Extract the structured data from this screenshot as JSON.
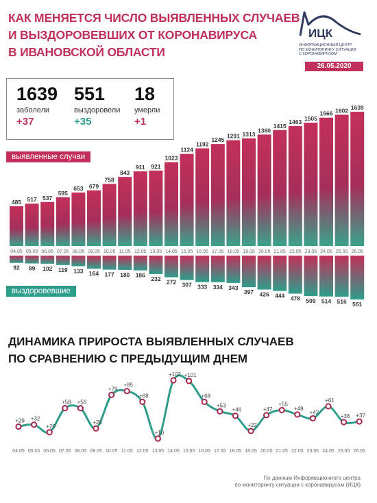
{
  "header": {
    "title_lines": [
      "КАК МЕНЯЕТСЯ ЧИСЛО ВЫЯВЛЕННЫХ СЛУЧАЕВ",
      "И ВЫЗДОРОВЕВШИХ ОТ КОРОНАВИРУСА",
      "В ИВАНОВСКОЙ ОБЛАСТИ"
    ],
    "logo_text": "ИЦК",
    "logo_sub": [
      "ИНФОРМАЦИОННЫЙ ЦЕНТР",
      "ПО МОНИТОРИНГУ СИТУАЦИИ",
      "С КОРОНАВИРУСОМ"
    ],
    "date": "26.05.2020"
  },
  "stats": [
    {
      "num": "1639",
      "label": "заболели",
      "delta": "+37"
    },
    {
      "num": "551",
      "label": "выздоровели",
      "delta": "+35"
    },
    {
      "num": "18",
      "label": "умерли",
      "delta": "+1"
    }
  ],
  "badges": {
    "cases": "выявленные случаи",
    "recovered": "выздоровевшие"
  },
  "section2": {
    "title_lines": [
      "ДИНАМИКА ПРИРОСТА ВЫЯВЛЕННЫХ СЛУЧАЕВ",
      "ПО СРАВНЕНИЮ С ПРЕДЫДУЩИМ ДНЕМ"
    ]
  },
  "source_lines": [
    "По данным Информационного центра",
    "по мониторингу ситуации с коронавирусом (ИЦК)"
  ],
  "colors": {
    "accent": "#c0305a",
    "teal": "#2e9e8c",
    "navy": "#2f3a5e",
    "dot": "#a8284e"
  },
  "chart_data": [
    {
      "type": "bar",
      "categories": [
        "04.05",
        "05.05",
        "06.05",
        "07.05",
        "08.05",
        "09.05",
        "10.05",
        "11.05",
        "12.05",
        "13.05",
        "14.05",
        "15.05",
        "16.05",
        "17.05",
        "18.05",
        "19.05",
        "20.05",
        "21.05",
        "22.05",
        "23.05",
        "24.05",
        "25.05",
        "26.05"
      ],
      "series": [
        {
          "name": "выявленные случаи",
          "values": [
            485,
            517,
            537,
            595,
            653,
            679,
            758,
            843,
            911,
            921,
            1023,
            1124,
            1192,
            1245,
            1291,
            1313,
            1360,
            1415,
            1463,
            1505,
            1566,
            1602,
            1639
          ]
        },
        {
          "name": "выздоровевшие",
          "values": [
            92,
            99,
            102,
            119,
            133,
            164,
            177,
            180,
            186,
            232,
            272,
            307,
            333,
            334,
            343,
            397,
            426,
            444,
            478,
            509,
            514,
            516,
            551
          ]
        }
      ]
    },
    {
      "type": "line",
      "x": [
        "04.05",
        "05.05",
        "06.05",
        "07.05",
        "08.05",
        "09.05",
        "10.05",
        "11.05",
        "12.05",
        "13.05",
        "14.05",
        "15.05",
        "16.05",
        "17.05",
        "18.05",
        "19.05",
        "20.05",
        "21.05",
        "22.05",
        "23.05",
        "24.05",
        "25.05",
        "26.05"
      ],
      "series": [
        {
          "values": [
            29,
            32,
            20,
            58,
            58,
            26,
            79,
            85,
            68,
            10,
            102,
            101,
            68,
            53,
            46,
            22,
            47,
            55,
            48,
            42,
            61,
            36,
            37
          ],
          "labels": [
            "+29",
            "+32",
            "+20",
            "+58",
            "+58",
            "+26",
            "+79",
            "+85",
            "+68",
            "+10",
            "+102",
            "+101",
            "+68",
            "+53",
            "+46",
            "+22",
            "+47",
            "+55",
            "+48",
            "+42",
            "+61",
            "+36",
            "+37"
          ]
        }
      ]
    }
  ]
}
